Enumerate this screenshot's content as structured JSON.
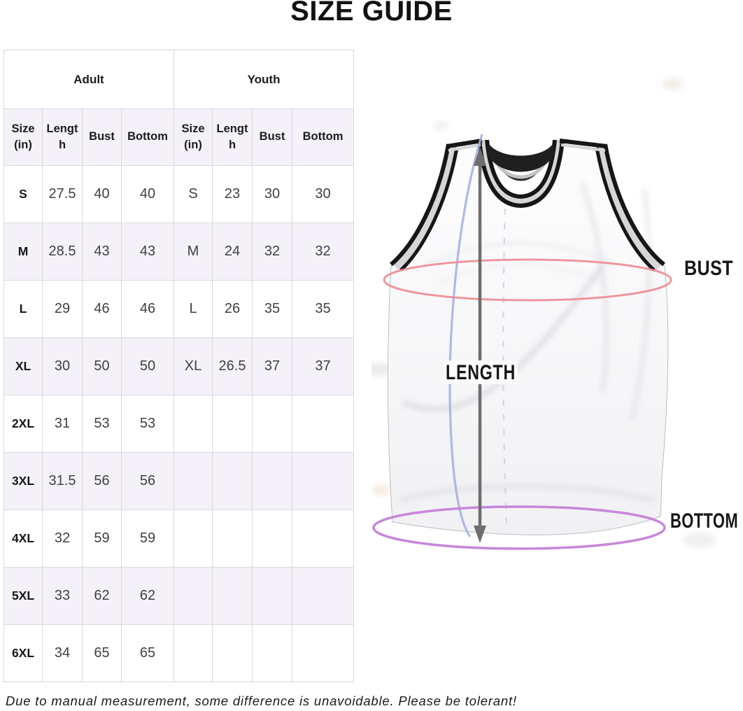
{
  "title": "SIZE GUIDE",
  "footnote": "Due to manual measurement, some difference is unavoidable. Please be tolerant!",
  "table": {
    "groups": [
      {
        "label": "Adult"
      },
      {
        "label": "Youth"
      }
    ],
    "columns": [
      "Size (in)",
      "Length",
      "Bust",
      "Bottom",
      "Size (in)",
      "Length",
      "Bust",
      "Bottom"
    ],
    "rows": [
      [
        "S",
        "27.5",
        "40",
        "40",
        "S",
        "23",
        "30",
        "30"
      ],
      [
        "M",
        "28.5",
        "43",
        "43",
        "M",
        "24",
        "32",
        "32"
      ],
      [
        "L",
        "29",
        "46",
        "46",
        "L",
        "26",
        "35",
        "35"
      ],
      [
        "XL",
        "30",
        "50",
        "50",
        "XL",
        "26.5",
        "37",
        "37"
      ],
      [
        "2XL",
        "31",
        "53",
        "53",
        "",
        "",
        "",
        ""
      ],
      [
        "3XL",
        "31.5",
        "56",
        "56",
        "",
        "",
        "",
        ""
      ],
      [
        "4XL",
        "32",
        "59",
        "59",
        "",
        "",
        "",
        ""
      ],
      [
        "5XL",
        "33",
        "62",
        "62",
        "",
        "",
        "",
        ""
      ],
      [
        "6XL",
        "34",
        "65",
        "65",
        "",
        "",
        "",
        ""
      ]
    ],
    "stripe_color": "#f5f1f8",
    "border_color": "#d9d9dd"
  },
  "diagram": {
    "bust_label": "BUST",
    "length_label": "LENGTH",
    "bottom_label": "BOTTOM",
    "colors": {
      "bust_line": "#ee8d96",
      "bottom_line": "#c481d8",
      "length_arrow": "#6e6e6e",
      "tape_line": "#a7b0e2"
    }
  }
}
